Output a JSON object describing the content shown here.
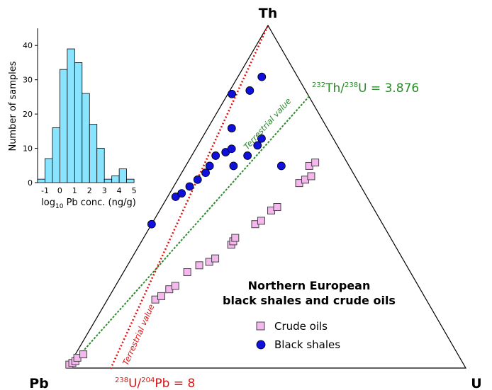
{
  "chart_data": [
    {
      "type": "ternary-scatter",
      "apex_labels": {
        "top": "Th",
        "left": "Pb",
        "right": "U"
      },
      "title_line1": "Northern European",
      "title_line2": "black shales and crude oils",
      "reference_lines": {
        "th_u": {
          "label_pre": "232",
          "label_mid": "Th/",
          "label_pre2": "238",
          "label_post": "U = 3.876",
          "note": "Terrestrial value",
          "color": "#2a8a2a"
        },
        "u_pb": {
          "label_pre": "238",
          "label_mid": "U/",
          "label_pre2": "204",
          "label_post": "Pb = 8",
          "note": "Terrestrial value",
          "color": "#dd1111"
        }
      },
      "legend": [
        {
          "label": "Crude oils",
          "marker": "square",
          "color": "#f4b8ee"
        },
        {
          "label": "Black shales",
          "marker": "circle",
          "color": "#1010dd"
        }
      ],
      "series": [
        {
          "name": "Crude oils",
          "points": [
            [
              0.99,
              0.01,
              0.0
            ],
            [
              0.98,
              0.015,
              0.005
            ],
            [
              0.97,
              0.02,
              0.01
            ],
            [
              0.96,
              0.03,
              0.01
            ],
            [
              0.94,
              0.04,
              0.02
            ],
            [
              0.68,
              0.2,
              0.12
            ],
            [
              0.66,
              0.21,
              0.13
            ],
            [
              0.63,
              0.23,
              0.14
            ],
            [
              0.61,
              0.24,
              0.15
            ],
            [
              0.56,
              0.28,
              0.16
            ],
            [
              0.52,
              0.3,
              0.18
            ],
            [
              0.49,
              0.31,
              0.2
            ],
            [
              0.47,
              0.32,
              0.21
            ],
            [
              0.41,
              0.36,
              0.23
            ],
            [
              0.4,
              0.37,
              0.23
            ],
            [
              0.39,
              0.38,
              0.23
            ],
            [
              0.32,
              0.42,
              0.26
            ],
            [
              0.3,
              0.43,
              0.27
            ],
            [
              0.26,
              0.46,
              0.28
            ],
            [
              0.24,
              0.47,
              0.29
            ],
            [
              0.15,
              0.54,
              0.31
            ],
            [
              0.13,
              0.55,
              0.32
            ],
            [
              0.11,
              0.56,
              0.33
            ],
            [
              0.1,
              0.59,
              0.31
            ],
            [
              0.08,
              0.6,
              0.32
            ]
          ]
        },
        {
          "name": "Black shales",
          "points": [
            [
              0.58,
              0.42,
              0.0
            ],
            [
              0.48,
              0.5,
              0.02
            ],
            [
              0.46,
              0.51,
              0.03
            ],
            [
              0.43,
              0.53,
              0.04
            ],
            [
              0.4,
              0.55,
              0.05
            ],
            [
              0.37,
              0.57,
              0.06
            ],
            [
              0.35,
              0.59,
              0.06
            ],
            [
              0.32,
              0.62,
              0.06
            ],
            [
              0.29,
              0.63,
              0.08
            ],
            [
              0.27,
              0.64,
              0.09
            ],
            [
              0.24,
              0.7,
              0.06
            ],
            [
              0.19,
              0.8,
              0.01
            ],
            [
              0.14,
              0.81,
              0.05
            ],
            [
              0.09,
              0.85,
              0.06
            ],
            [
              0.29,
              0.59,
              0.12
            ],
            [
              0.24,
              0.62,
              0.14
            ],
            [
              0.2,
              0.65,
              0.15
            ],
            [
              0.18,
              0.67,
              0.15
            ],
            [
              0.17,
              0.59,
              0.24
            ]
          ]
        }
      ]
    },
    {
      "type": "bar",
      "title": "",
      "xlabel_pre": "log",
      "xlabel_sub": "10",
      "xlabel_post": " Pb conc. (ng/g)",
      "ylabel": "Number of samples",
      "ylim": [
        0,
        45
      ],
      "yticks": [
        0,
        10,
        20,
        30,
        40
      ],
      "xticks": [
        "-1",
        "0",
        "1",
        "2",
        "3",
        "4",
        "5"
      ],
      "x_range": [
        -1.5,
        6.0
      ],
      "bin_width": 0.5,
      "bins_start": -1.5,
      "values": [
        1,
        7,
        16,
        33,
        39,
        35,
        26,
        17,
        10,
        1,
        2,
        4,
        1
      ],
      "bar_color": "#88e4ff"
    }
  ]
}
